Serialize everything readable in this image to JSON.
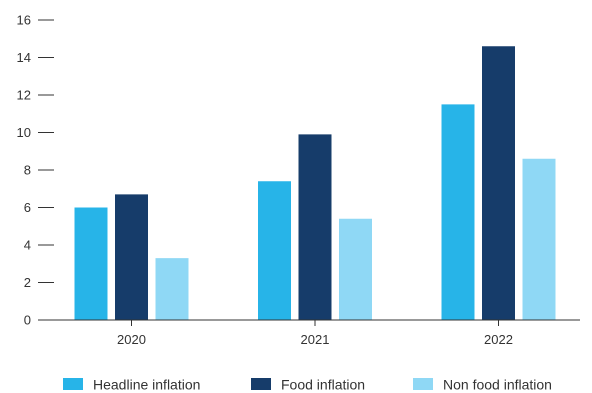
{
  "chart_data": {
    "type": "bar",
    "categories": [
      "2020",
      "2021",
      "2022"
    ],
    "series": [
      {
        "name": "Headline inflation",
        "values": [
          6.0,
          7.4,
          11.5
        ],
        "color": "#27B4E8"
      },
      {
        "name": "Food inflation",
        "values": [
          6.7,
          9.9,
          14.6
        ],
        "color": "#163C6A"
      },
      {
        "name": "Non food inflation",
        "values": [
          3.3,
          5.4,
          8.6
        ],
        "color": "#8FD8F5"
      }
    ],
    "y_ticks": [
      "0",
      "2",
      "4",
      "6",
      "8",
      "10",
      "12",
      "14",
      "16"
    ],
    "ylim": [
      0,
      16
    ],
    "grid": false,
    "legend_position": "bottom"
  }
}
